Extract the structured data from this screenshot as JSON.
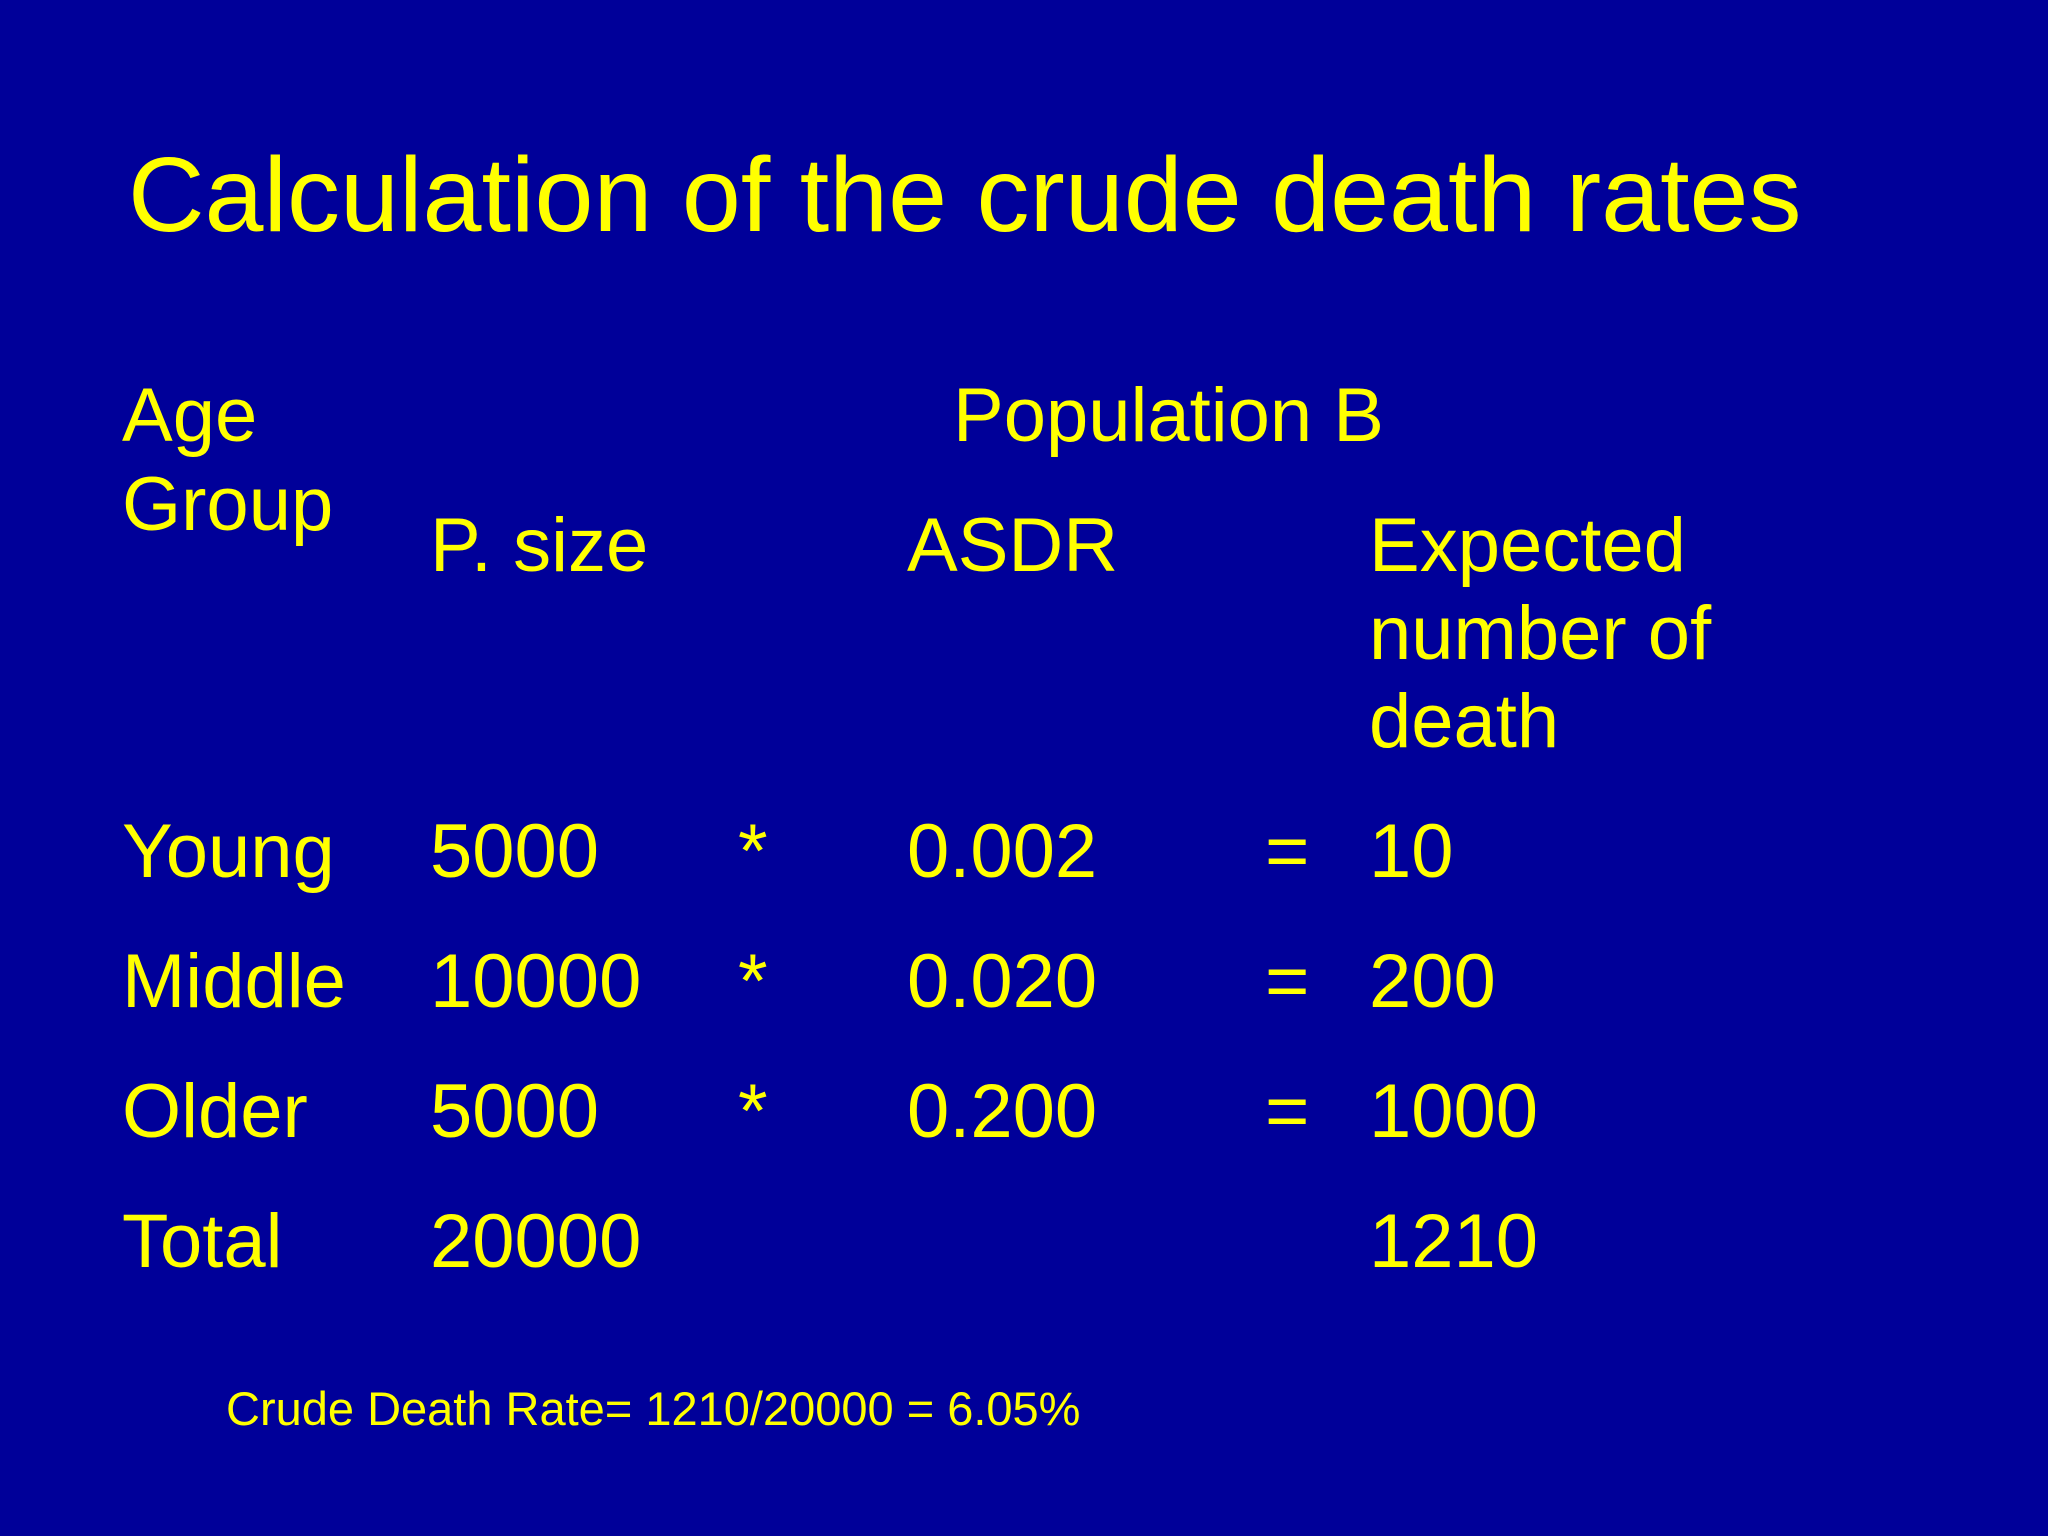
{
  "slide": {
    "title": "Calculation of the crude death rates",
    "headers": {
      "age_group_line1": "Age",
      "age_group_line2": "Group",
      "population": "Population B",
      "p_size": "P. size",
      "asdr": "ASDR",
      "expected_line1": "Expected",
      "expected_line2": "number of",
      "expected_line3": "death"
    },
    "rows": [
      {
        "group": "Young",
        "size": "5000",
        "op": "*",
        "asdr": "0.002",
        "eq": "=",
        "expected": "10"
      },
      {
        "group": "Middle",
        "size": "10000",
        "op": "*",
        "asdr": "0.020",
        "eq": "=",
        "expected": "200"
      },
      {
        "group": "Older",
        "size": "5000",
        "op": "*",
        "asdr": "0.200",
        "eq": "=",
        "expected": "1000"
      }
    ],
    "total": {
      "label": "Total",
      "size": "20000",
      "expected": "1210"
    },
    "footer": "Crude Death Rate= 1210/20000 = 6.05%",
    "colors": {
      "background": "#000099",
      "text": "#ffff00"
    }
  }
}
